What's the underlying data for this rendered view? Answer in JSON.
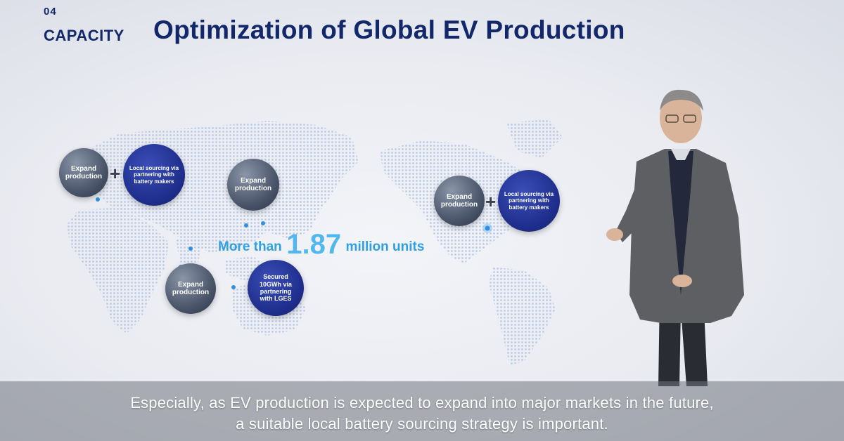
{
  "header": {
    "number": "04",
    "section": "CAPACITY",
    "title": "Optimization of Global EV Production"
  },
  "bubbles": {
    "europe_expand": "Expand production",
    "europe_local": "Local sourcing via partnering with battery makers",
    "asia_expand": "Expand production",
    "india_expand": "Expand production",
    "indonesia_secured": "Secured 10GWh via partnering with LGES",
    "us_expand": "Expand production",
    "us_local": "Local sourcing via partnering with battery makers",
    "plus": "+"
  },
  "callout": {
    "prefix": "More than",
    "value": "1.87",
    "suffix": "million units"
  },
  "subtitle": {
    "line1": "Especially, as EV production is expected to expand into major markets in the future,",
    "line2": "a suitable local battery sourcing strategy is important."
  },
  "colors": {
    "navy": "#13286b",
    "accent_blue": "#2f9fe6",
    "map": "#c9d6ec"
  }
}
